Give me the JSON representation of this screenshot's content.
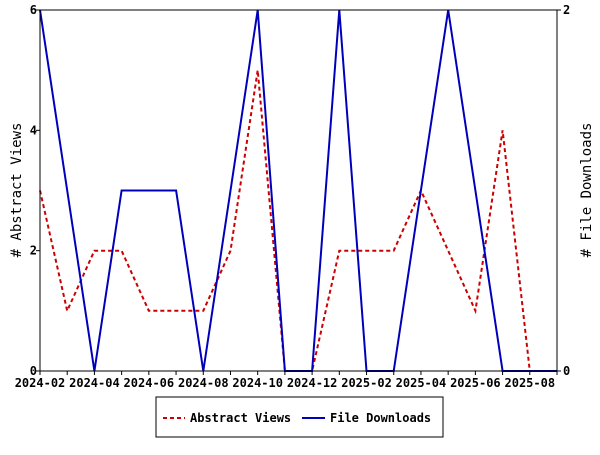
{
  "chart_data": {
    "type": "line",
    "title": "",
    "xlabel": "",
    "ylabel": "# Abstract Views",
    "y2label": "# File Downloads",
    "x": [
      "2024-02",
      "2024-03",
      "2024-04",
      "2024-05",
      "2024-06",
      "2024-07",
      "2024-08",
      "2024-09",
      "2024-10",
      "2024-11",
      "2024-12",
      "2025-01",
      "2025-02",
      "2025-03",
      "2025-04",
      "2025-05",
      "2025-06",
      "2025-07",
      "2025-08",
      "2025-09"
    ],
    "x_tick_labels": [
      "2024-02",
      "2024-04",
      "2024-06",
      "2024-08",
      "2024-10",
      "2024-12",
      "2025-02",
      "2025-04",
      "2025-06",
      "2025-08"
    ],
    "ylim": [
      0,
      6
    ],
    "y_ticks": [
      "0",
      "2",
      "4",
      "6"
    ],
    "y2lim": [
      0,
      2
    ],
    "y2_ticks": [
      "0",
      "2"
    ],
    "grid": false,
    "legend_placement": "bottom",
    "series": [
      {
        "name": "Abstract Views",
        "axis": "left",
        "color": "#cc0000",
        "style": "dashed",
        "values": [
          3,
          1,
          2,
          2,
          1,
          1,
          1,
          2,
          5,
          0,
          0,
          2,
          2,
          2,
          3,
          2,
          1,
          4,
          0,
          null
        ]
      },
      {
        "name": "File Downloads",
        "axis": "right",
        "color": "#0000bb",
        "style": "solid",
        "values": [
          2,
          1,
          0,
          1,
          1,
          1,
          0,
          1,
          2,
          0,
          0,
          2,
          0,
          0,
          1,
          2,
          1,
          0,
          0,
          0
        ]
      }
    ]
  }
}
